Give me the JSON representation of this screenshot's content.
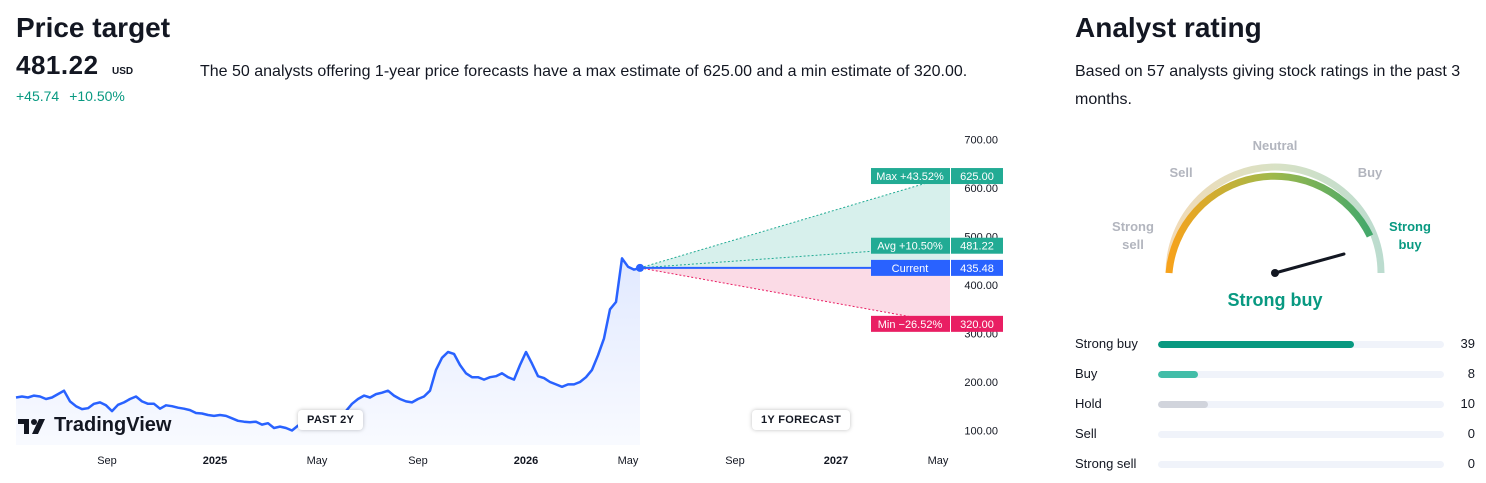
{
  "price_target": {
    "title": "Price target",
    "price": "481.22",
    "currency": "USD",
    "change_abs": "+45.74",
    "change_pct": "+10.50%",
    "description": "The 50 analysts offering 1-year price forecasts have a max estimate of 625.00 and a min estimate of 320.00."
  },
  "chart_labels": {
    "max_pct": "Max +43.52%",
    "max_val": "625.00",
    "avg_pct": "Avg +10.50%",
    "avg_val": "481.22",
    "current_lbl": "Current",
    "current_val": "435.48",
    "min_pct": "Min −26.52%",
    "min_val": "320.00",
    "past_pill": "PAST 2Y",
    "forecast_pill": "1Y FORECAST",
    "brand": "TradingView"
  },
  "colors": {
    "line": "#2962ff",
    "up": "#22ab94",
    "down": "#e91e63",
    "text_green": "#089981"
  },
  "chart_data": {
    "type": "line",
    "x_tick_labels": [
      "Sep",
      "2025",
      "May",
      "Sep",
      "2026",
      "May",
      "Sep",
      "2027",
      "May"
    ],
    "y_tick_labels": [
      "100.00",
      "200.00",
      "300.00",
      "400.00",
      "500.00",
      "600.00",
      "700.00"
    ],
    "ylim": [
      70,
      720
    ],
    "series": [
      {
        "values": [
          168,
          170,
          168,
          172,
          170,
          165,
          168,
          175,
          182,
          160,
          150,
          144,
          146,
          155,
          158,
          152,
          140,
          153,
          158,
          165,
          170,
          160,
          155,
          155,
          145,
          152,
          150,
          147,
          145,
          142,
          136,
          135,
          132,
          130,
          132,
          130,
          125,
          120,
          118,
          117,
          118,
          112,
          115,
          105,
          108,
          105,
          100,
          110,
          115,
          108,
          110,
          112,
          118,
          125,
          130,
          140,
          155,
          165,
          172,
          168,
          175,
          178,
          182,
          172,
          165,
          160,
          158,
          165,
          170,
          182,
          225,
          250,
          262,
          258,
          235,
          218,
          210,
          210,
          205,
          210,
          212,
          218,
          210,
          205,
          235,
          262,
          238,
          212,
          208,
          200,
          195,
          190,
          195,
          195,
          200,
          210,
          225,
          255,
          290,
          350,
          365,
          455,
          438,
          432,
          435.48
        ]
      }
    ],
    "forecast": {
      "current": 435.48,
      "max": 625.0,
      "avg": 481.22,
      "min": 320.0
    }
  },
  "analyst_rating": {
    "title": "Analyst rating",
    "description": "Based on 57 analysts giving stock ratings in the past 3 months.",
    "gauge_labels": {
      "strong_sell": "Strong sell",
      "sell": "Sell",
      "neutral": "Neutral",
      "buy": "Buy",
      "strong_buy": "Strong buy"
    },
    "result": "Strong buy",
    "ratings": [
      {
        "label": "Strong buy",
        "count": "39",
        "color": "#089981"
      },
      {
        "label": "Buy",
        "count": "8",
        "color": "#42bda8"
      },
      {
        "label": "Hold",
        "count": "10",
        "color": "#d1d4dc"
      },
      {
        "label": "Sell",
        "count": "0",
        "color": "#f0f3fa"
      },
      {
        "label": "Strong sell",
        "count": "0",
        "color": "#f0f3fa"
      }
    ]
  }
}
